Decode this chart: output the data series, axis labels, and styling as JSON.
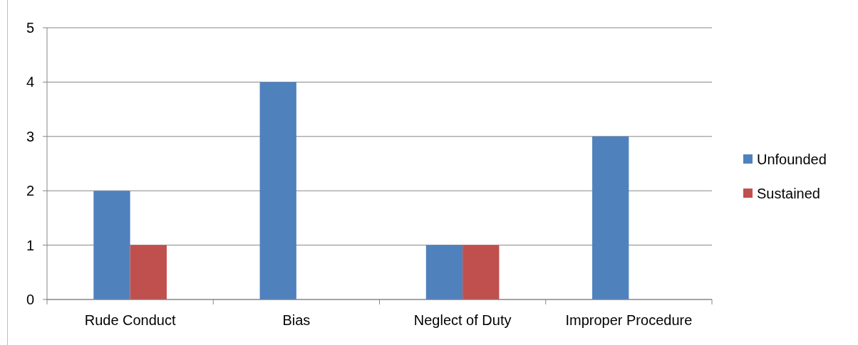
{
  "chart_data": {
    "type": "bar",
    "categories": [
      "Rude Conduct",
      "Bias",
      "Neglect of Duty",
      "Improper Procedure"
    ],
    "series": [
      {
        "name": "Unfounded",
        "color": "#4f81bd",
        "values": [
          2,
          4,
          1,
          3
        ]
      },
      {
        "name": "Sustained",
        "color": "#c0504d",
        "values": [
          1,
          0,
          1,
          0
        ]
      }
    ],
    "ylim": [
      0,
      5
    ],
    "yticks": [
      0,
      1,
      2,
      3,
      4,
      5
    ],
    "grid": "y",
    "legend": "right"
  }
}
